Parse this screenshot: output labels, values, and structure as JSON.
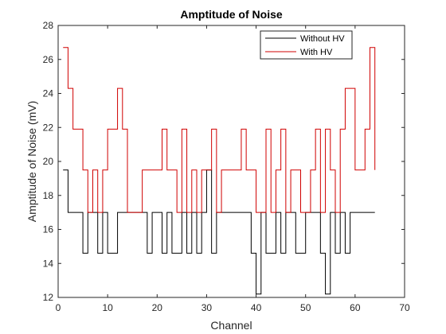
{
  "chart_data": {
    "type": "line",
    "title": "Amptitude of Noise",
    "xlabel": "Channel",
    "ylabel": "Amptitude of Noise (mV)",
    "xlim": [
      0,
      70
    ],
    "ylim": [
      12,
      28
    ],
    "xticks": [
      0,
      10,
      20,
      30,
      40,
      50,
      60,
      70
    ],
    "yticks": [
      12,
      14,
      16,
      18,
      20,
      22,
      24,
      26,
      28
    ],
    "grid": false,
    "legend_position": "top-right",
    "step": "post",
    "x": [
      1,
      2,
      3,
      4,
      5,
      6,
      7,
      8,
      9,
      10,
      11,
      12,
      13,
      14,
      15,
      16,
      17,
      18,
      19,
      20,
      21,
      22,
      23,
      24,
      25,
      26,
      27,
      28,
      29,
      30,
      31,
      32,
      33,
      34,
      35,
      36,
      37,
      38,
      39,
      40,
      41,
      42,
      43,
      44,
      45,
      46,
      47,
      48,
      49,
      50,
      51,
      52,
      53,
      54,
      55,
      56,
      57,
      58,
      59,
      60,
      61,
      62,
      63,
      64
    ],
    "series": [
      {
        "name": "Without HV",
        "color": "#000000",
        "values": [
          19.5,
          17.0,
          17.0,
          17.0,
          14.6,
          17.0,
          17.0,
          14.6,
          17.0,
          14.6,
          14.6,
          17.0,
          17.0,
          17.0,
          17.0,
          17.0,
          17.0,
          14.6,
          17.0,
          17.0,
          14.6,
          17.0,
          14.6,
          14.6,
          17.0,
          14.6,
          17.0,
          14.6,
          17.0,
          19.5,
          14.6,
          17.0,
          17.0,
          17.0,
          17.0,
          17.0,
          17.0,
          17.0,
          14.6,
          12.2,
          17.0,
          14.6,
          14.6,
          17.0,
          14.6,
          17.0,
          17.0,
          14.6,
          14.6,
          17.0,
          17.0,
          17.0,
          14.6,
          12.2,
          17.0,
          14.6,
          17.0,
          14.6,
          17.0,
          17.0,
          17.0,
          17.0,
          17.0,
          17.0
        ]
      },
      {
        "name": "With HV",
        "color": "#d00000",
        "values": [
          26.7,
          24.3,
          21.9,
          21.9,
          19.5,
          17.0,
          19.5,
          17.0,
          19.5,
          21.9,
          21.9,
          24.3,
          21.9,
          17.0,
          17.0,
          17.0,
          19.5,
          19.5,
          19.5,
          19.5,
          21.9,
          19.5,
          19.5,
          17.0,
          21.9,
          17.0,
          19.5,
          17.0,
          19.5,
          19.5,
          21.9,
          17.0,
          19.5,
          19.5,
          19.5,
          19.5,
          21.9,
          19.5,
          19.5,
          17.0,
          17.0,
          21.9,
          17.0,
          19.5,
          21.9,
          17.0,
          19.5,
          19.5,
          17.0,
          17.0,
          19.5,
          21.9,
          17.0,
          21.9,
          19.5,
          17.0,
          21.9,
          24.3,
          24.3,
          19.5,
          19.5,
          21.9,
          26.7,
          19.5
        ]
      }
    ]
  }
}
